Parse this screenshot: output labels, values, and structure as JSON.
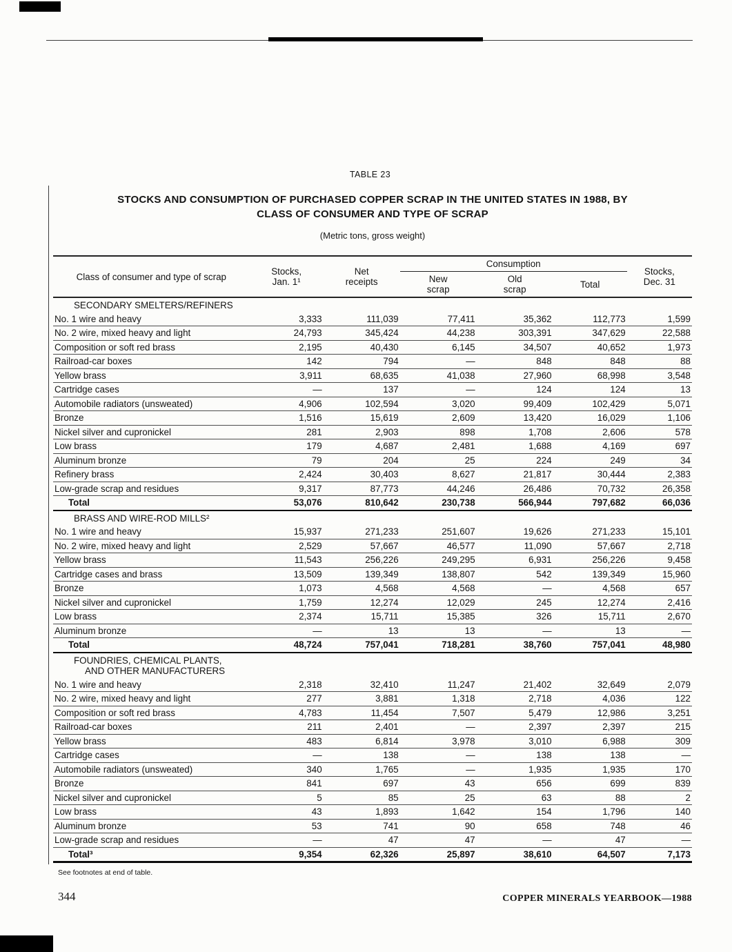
{
  "page": {
    "table_label": "TABLE 23",
    "title_lines": [
      "STOCKS AND CONSUMPTION OF PURCHASED COPPER SCRAP IN THE UNITED STATES IN 1988, BY",
      "CLASS OF CONSUMER AND TYPE OF SCRAP"
    ],
    "subtitle": "(Metric tons, gross weight)",
    "footnote": "See footnotes at end of table.",
    "page_number": "344",
    "footer_right": "COPPER MINERALS YEARBOOK—1988"
  },
  "table": {
    "column_headers": {
      "class_label": "Class of consumer and type of scrap",
      "stocks_jan": [
        "Stocks,",
        "Jan. 1¹"
      ],
      "net_receipts": [
        "Net",
        "receipts"
      ],
      "consumption": "Consumption",
      "new_scrap": [
        "New",
        "scrap"
      ],
      "old_scrap": [
        "Old",
        "scrap"
      ],
      "total": "Total",
      "stocks_dec": [
        "Stocks,",
        "Dec. 31"
      ]
    },
    "sections": [
      {
        "heading_lines": [
          "SECONDARY SMELTERS/REFINERS"
        ],
        "rows": [
          {
            "label": "No. 1 wire and heavy",
            "values": [
              "3,333",
              "111,039",
              "77,411",
              "35,362",
              "112,773",
              "1,599"
            ]
          },
          {
            "label": "No. 2 wire, mixed heavy and light",
            "values": [
              "24,793",
              "345,424",
              "44,238",
              "303,391",
              "347,629",
              "22,588"
            ]
          },
          {
            "label": "Composition or soft red brass",
            "values": [
              "2,195",
              "40,430",
              "6,145",
              "34,507",
              "40,652",
              "1,973"
            ]
          },
          {
            "label": "Railroad-car boxes",
            "values": [
              "142",
              "794",
              "—",
              "848",
              "848",
              "88"
            ]
          },
          {
            "label": "Yellow brass",
            "values": [
              "3,911",
              "68,635",
              "41,038",
              "27,960",
              "68,998",
              "3,548"
            ]
          },
          {
            "label": "Cartridge cases",
            "values": [
              "—",
              "137",
              "—",
              "124",
              "124",
              "13"
            ]
          },
          {
            "label": "Automobile radiators (unsweated)",
            "values": [
              "4,906",
              "102,594",
              "3,020",
              "99,409",
              "102,429",
              "5,071"
            ]
          },
          {
            "label": "Bronze",
            "values": [
              "1,516",
              "15,619",
              "2,609",
              "13,420",
              "16,029",
              "1,106"
            ]
          },
          {
            "label": "Nickel silver and cupronickel",
            "values": [
              "281",
              "2,903",
              "898",
              "1,708",
              "2,606",
              "578"
            ]
          },
          {
            "label": "Low brass",
            "values": [
              "179",
              "4,687",
              "2,481",
              "1,688",
              "4,169",
              "697"
            ]
          },
          {
            "label": "Aluminum bronze",
            "values": [
              "79",
              "204",
              "25",
              "224",
              "249",
              "34"
            ]
          },
          {
            "label": "Refinery brass",
            "values": [
              "2,424",
              "30,403",
              "8,627",
              "21,817",
              "30,444",
              "2,383"
            ]
          },
          {
            "label": "Low-grade scrap and residues",
            "values": [
              "9,317",
              "87,773",
              "44,246",
              "26,486",
              "70,732",
              "26,358"
            ]
          },
          {
            "label": "Total",
            "is_total": true,
            "values": [
              "53,076",
              "810,642",
              "230,738",
              "566,944",
              "797,682",
              "66,036"
            ]
          }
        ]
      },
      {
        "heading_lines": [
          "BRASS AND WIRE-ROD MILLS²"
        ],
        "rows": [
          {
            "label": "No. 1 wire and heavy",
            "values": [
              "15,937",
              "271,233",
              "251,607",
              "19,626",
              "271,233",
              "15,101"
            ]
          },
          {
            "label": "No. 2 wire, mixed heavy and light",
            "values": [
              "2,529",
              "57,667",
              "46,577",
              "11,090",
              "57,667",
              "2,718"
            ]
          },
          {
            "label": "Yellow brass",
            "values": [
              "11,543",
              "256,226",
              "249,295",
              "6,931",
              "256,226",
              "9,458"
            ]
          },
          {
            "label": "Cartridge cases and brass",
            "values": [
              "13,509",
              "139,349",
              "138,807",
              "542",
              "139,349",
              "15,960"
            ]
          },
          {
            "label": "Bronze",
            "values": [
              "1,073",
              "4,568",
              "4,568",
              "—",
              "4,568",
              "657"
            ]
          },
          {
            "label": "Nickel silver and cupronickel",
            "values": [
              "1,759",
              "12,274",
              "12,029",
              "245",
              "12,274",
              "2,416"
            ]
          },
          {
            "label": "Low brass",
            "values": [
              "2,374",
              "15,711",
              "15,385",
              "326",
              "15,711",
              "2,670"
            ]
          },
          {
            "label": "Aluminum bronze",
            "values": [
              "—",
              "13",
              "13",
              "—",
              "13",
              "—"
            ]
          },
          {
            "label": "Total",
            "is_total": true,
            "values": [
              "48,724",
              "757,041",
              "718,281",
              "38,760",
              "757,041",
              "48,980"
            ]
          }
        ]
      },
      {
        "heading_lines": [
          "FOUNDRIES, CHEMICAL PLANTS,",
          "AND OTHER MANUFACTURERS"
        ],
        "rows": [
          {
            "label": "No. 1 wire and heavy",
            "values": [
              "2,318",
              "32,410",
              "11,247",
              "21,402",
              "32,649",
              "2,079"
            ]
          },
          {
            "label": "No. 2 wire, mixed heavy and light",
            "values": [
              "277",
              "3,881",
              "1,318",
              "2,718",
              "4,036",
              "122"
            ]
          },
          {
            "label": "Composition or soft red brass",
            "values": [
              "4,783",
              "11,454",
              "7,507",
              "5,479",
              "12,986",
              "3,251"
            ]
          },
          {
            "label": "Railroad-car boxes",
            "values": [
              "211",
              "2,401",
              "—",
              "2,397",
              "2,397",
              "215"
            ]
          },
          {
            "label": "Yellow brass",
            "values": [
              "483",
              "6,814",
              "3,978",
              "3,010",
              "6,988",
              "309"
            ]
          },
          {
            "label": "Cartridge cases",
            "values": [
              "—",
              "138",
              "—",
              "138",
              "138",
              "—"
            ]
          },
          {
            "label": "Automobile radiators (unsweated)",
            "values": [
              "340",
              "1,765",
              "—",
              "1,935",
              "1,935",
              "170"
            ]
          },
          {
            "label": "Bronze",
            "values": [
              "841",
              "697",
              "43",
              "656",
              "699",
              "839"
            ]
          },
          {
            "label": "Nickel silver and cupronickel",
            "values": [
              "5",
              "85",
              "25",
              "63",
              "88",
              "2"
            ]
          },
          {
            "label": "Low brass",
            "values": [
              "43",
              "1,893",
              "1,642",
              "154",
              "1,796",
              "140"
            ]
          },
          {
            "label": "Aluminum bronze",
            "values": [
              "53",
              "741",
              "90",
              "658",
              "748",
              "46"
            ]
          },
          {
            "label": "Low-grade scrap and residues",
            "values": [
              "—",
              "47",
              "47",
              "—",
              "47",
              "—"
            ]
          },
          {
            "label": "Total³",
            "is_total": true,
            "final": true,
            "values": [
              "9,354",
              "62,326",
              "25,897",
              "38,610",
              "64,507",
              "7,173"
            ]
          }
        ]
      }
    ]
  }
}
